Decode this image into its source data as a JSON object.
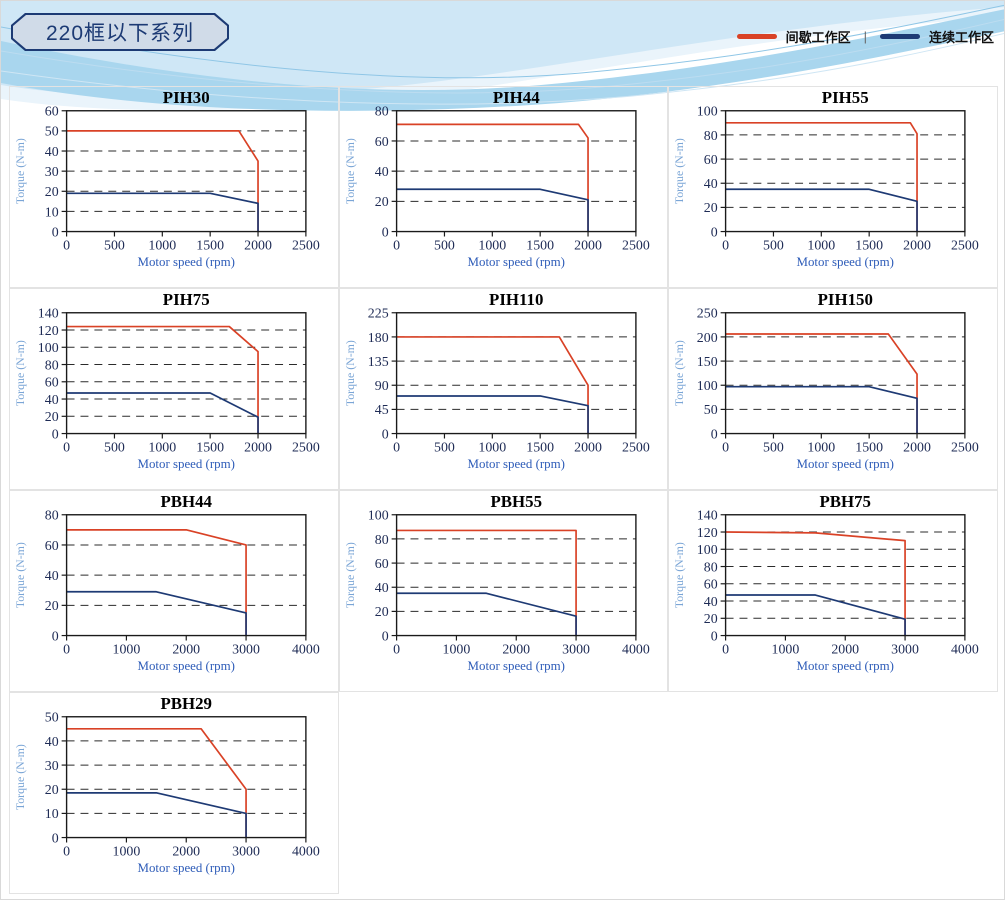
{
  "page_title": "220框以下系列",
  "legend": {
    "intermittent_label": "间歇工作区",
    "separator": "|",
    "continuous_label": "连续工作区"
  },
  "axis": {
    "x_label": "Motor speed (rpm)",
    "y_label": "Torque (N-m)"
  },
  "colors": {
    "intermittent": "#d94226",
    "continuous": "#1e3a74",
    "grid_line": "#2b2b2b",
    "plot_border": "#1a1a1a",
    "tick_text": "#1e2b55",
    "title_text": "#000000",
    "y_label_text": "#7aa5d6",
    "x_label_text": "#2e5cb8",
    "header_navy": "#1c3a74"
  },
  "chart_data": [
    {
      "type": "line",
      "title": "PIH30",
      "xlim": [
        0,
        2500
      ],
      "xticks": [
        0,
        500,
        1000,
        1500,
        2000,
        2500
      ],
      "ylim": [
        0,
        60
      ],
      "yticks": [
        0,
        10,
        20,
        30,
        40,
        50,
        60
      ],
      "series": [
        {
          "name": "间歇工作区",
          "color_key": "intermittent",
          "points": [
            [
              0,
              50
            ],
            [
              1800,
              50
            ],
            [
              2000,
              35
            ],
            [
              2000,
              0
            ]
          ]
        },
        {
          "name": "连续工作区",
          "color_key": "continuous",
          "points": [
            [
              0,
              19
            ],
            [
              1500,
              19
            ],
            [
              2000,
              14
            ],
            [
              2000,
              0
            ]
          ]
        }
      ]
    },
    {
      "type": "line",
      "title": "PIH44",
      "xlim": [
        0,
        2500
      ],
      "xticks": [
        0,
        500,
        1000,
        1500,
        2000,
        2500
      ],
      "ylim": [
        0,
        80
      ],
      "yticks": [
        0,
        20,
        40,
        60,
        80
      ],
      "series": [
        {
          "name": "间歇工作区",
          "color_key": "intermittent",
          "points": [
            [
              0,
              71
            ],
            [
              1900,
              71
            ],
            [
              2000,
              62
            ],
            [
              2000,
              0
            ]
          ]
        },
        {
          "name": "连续工作区",
          "color_key": "continuous",
          "points": [
            [
              0,
              28
            ],
            [
              1500,
              28
            ],
            [
              2000,
              21
            ],
            [
              2000,
              0
            ]
          ]
        }
      ]
    },
    {
      "type": "line",
      "title": "PIH55",
      "xlim": [
        0,
        2500
      ],
      "xticks": [
        0,
        500,
        1000,
        1500,
        2000,
        2500
      ],
      "ylim": [
        0,
        100
      ],
      "yticks": [
        0,
        20,
        40,
        60,
        80,
        100
      ],
      "series": [
        {
          "name": "间歇工作区",
          "color_key": "intermittent",
          "points": [
            [
              0,
              90
            ],
            [
              1930,
              90
            ],
            [
              2000,
              81
            ],
            [
              2000,
              0
            ]
          ]
        },
        {
          "name": "连续工作区",
          "color_key": "continuous",
          "points": [
            [
              0,
              35
            ],
            [
              1500,
              35
            ],
            [
              2000,
              25
            ],
            [
              2000,
              0
            ]
          ]
        }
      ]
    },
    {
      "type": "line",
      "title": "PIH75",
      "xlim": [
        0,
        2500
      ],
      "xticks": [
        0,
        500,
        1000,
        1500,
        2000,
        2500
      ],
      "ylim": [
        0,
        140
      ],
      "yticks": [
        0,
        20,
        40,
        60,
        80,
        100,
        120,
        140
      ],
      "series": [
        {
          "name": "间歇工作区",
          "color_key": "intermittent",
          "points": [
            [
              0,
              124
            ],
            [
              1700,
              124
            ],
            [
              2000,
              95
            ],
            [
              2000,
              0
            ]
          ]
        },
        {
          "name": "连续工作区",
          "color_key": "continuous",
          "points": [
            [
              0,
              47
            ],
            [
              1500,
              47
            ],
            [
              2000,
              19
            ],
            [
              2000,
              0
            ]
          ]
        }
      ]
    },
    {
      "type": "line",
      "title": "PIH110",
      "xlim": [
        0,
        2500
      ],
      "xticks": [
        0,
        500,
        1000,
        1500,
        2000,
        2500
      ],
      "ylim": [
        0,
        225
      ],
      "yticks": [
        0,
        45,
        90,
        135,
        180,
        225
      ],
      "series": [
        {
          "name": "间歇工作区",
          "color_key": "intermittent",
          "points": [
            [
              0,
              180
            ],
            [
              1700,
              180
            ],
            [
              2000,
              90
            ],
            [
              2000,
              0
            ]
          ]
        },
        {
          "name": "连续工作区",
          "color_key": "continuous",
          "points": [
            [
              0,
              70
            ],
            [
              1500,
              70
            ],
            [
              2000,
              52
            ],
            [
              2000,
              0
            ]
          ]
        }
      ]
    },
    {
      "type": "line",
      "title": "PIH150",
      "xlim": [
        0,
        2500
      ],
      "xticks": [
        0,
        500,
        1000,
        1500,
        2000,
        2500
      ],
      "ylim": [
        0,
        250
      ],
      "yticks": [
        0,
        50,
        100,
        150,
        200,
        250
      ],
      "series": [
        {
          "name": "间歇工作区",
          "color_key": "intermittent",
          "points": [
            [
              0,
              206
            ],
            [
              1700,
              206
            ],
            [
              2000,
              123
            ],
            [
              2000,
              0
            ]
          ]
        },
        {
          "name": "连续工作区",
          "color_key": "continuous",
          "points": [
            [
              0,
              97
            ],
            [
              1500,
              97
            ],
            [
              2000,
              73
            ],
            [
              2000,
              0
            ]
          ]
        }
      ]
    },
    {
      "type": "line",
      "title": "PBH44",
      "xlim": [
        0,
        4000
      ],
      "xticks": [
        0,
        1000,
        2000,
        3000,
        4000
      ],
      "ylim": [
        0,
        80
      ],
      "yticks": [
        0,
        20,
        40,
        60,
        80
      ],
      "series": [
        {
          "name": "间歇工作区",
          "color_key": "intermittent",
          "points": [
            [
              0,
              70
            ],
            [
              2000,
              70
            ],
            [
              3000,
              60
            ],
            [
              3000,
              0
            ]
          ]
        },
        {
          "name": "连续工作区",
          "color_key": "continuous",
          "points": [
            [
              0,
              29
            ],
            [
              1500,
              29
            ],
            [
              3000,
              15
            ],
            [
              3000,
              0
            ]
          ]
        }
      ]
    },
    {
      "type": "line",
      "title": "PBH55",
      "xlim": [
        0,
        4000
      ],
      "xticks": [
        0,
        1000,
        2000,
        3000,
        4000
      ],
      "ylim": [
        0,
        100
      ],
      "yticks": [
        0,
        20,
        40,
        60,
        80,
        100
      ],
      "series": [
        {
          "name": "间歇工作区",
          "color_key": "intermittent",
          "points": [
            [
              0,
              87
            ],
            [
              3000,
              87
            ],
            [
              3000,
              0
            ]
          ]
        },
        {
          "name": "连续工作区",
          "color_key": "continuous",
          "points": [
            [
              0,
              35
            ],
            [
              1500,
              35
            ],
            [
              3000,
              16
            ],
            [
              3000,
              0
            ]
          ]
        }
      ]
    },
    {
      "type": "line",
      "title": "PBH75",
      "xlim": [
        0,
        4000
      ],
      "xticks": [
        0,
        1000,
        2000,
        3000,
        4000
      ],
      "ylim": [
        0,
        140
      ],
      "yticks": [
        0,
        20,
        40,
        60,
        80,
        100,
        120,
        140
      ],
      "series": [
        {
          "name": "间歇工作区",
          "color_key": "intermittent",
          "points": [
            [
              0,
              120
            ],
            [
              1500,
              119
            ],
            [
              3000,
              110
            ],
            [
              3000,
              0
            ]
          ]
        },
        {
          "name": "连续工作区",
          "color_key": "continuous",
          "points": [
            [
              0,
              47
            ],
            [
              1500,
              47
            ],
            [
              3000,
              19
            ],
            [
              3000,
              0
            ]
          ]
        }
      ]
    },
    {
      "type": "line",
      "title": "PBH29",
      "xlim": [
        0,
        4000
      ],
      "xticks": [
        0,
        1000,
        2000,
        3000,
        4000
      ],
      "ylim": [
        0,
        50
      ],
      "yticks": [
        0,
        10,
        20,
        30,
        40,
        50
      ],
      "series": [
        {
          "name": "间歇工作区",
          "color_key": "intermittent",
          "points": [
            [
              0,
              45
            ],
            [
              2250,
              45
            ],
            [
              3000,
              20
            ],
            [
              3000,
              0
            ]
          ]
        },
        {
          "name": "连续工作区",
          "color_key": "continuous",
          "points": [
            [
              0,
              18.5
            ],
            [
              1500,
              18.5
            ],
            [
              3000,
              10
            ],
            [
              3000,
              0
            ]
          ]
        }
      ]
    }
  ]
}
